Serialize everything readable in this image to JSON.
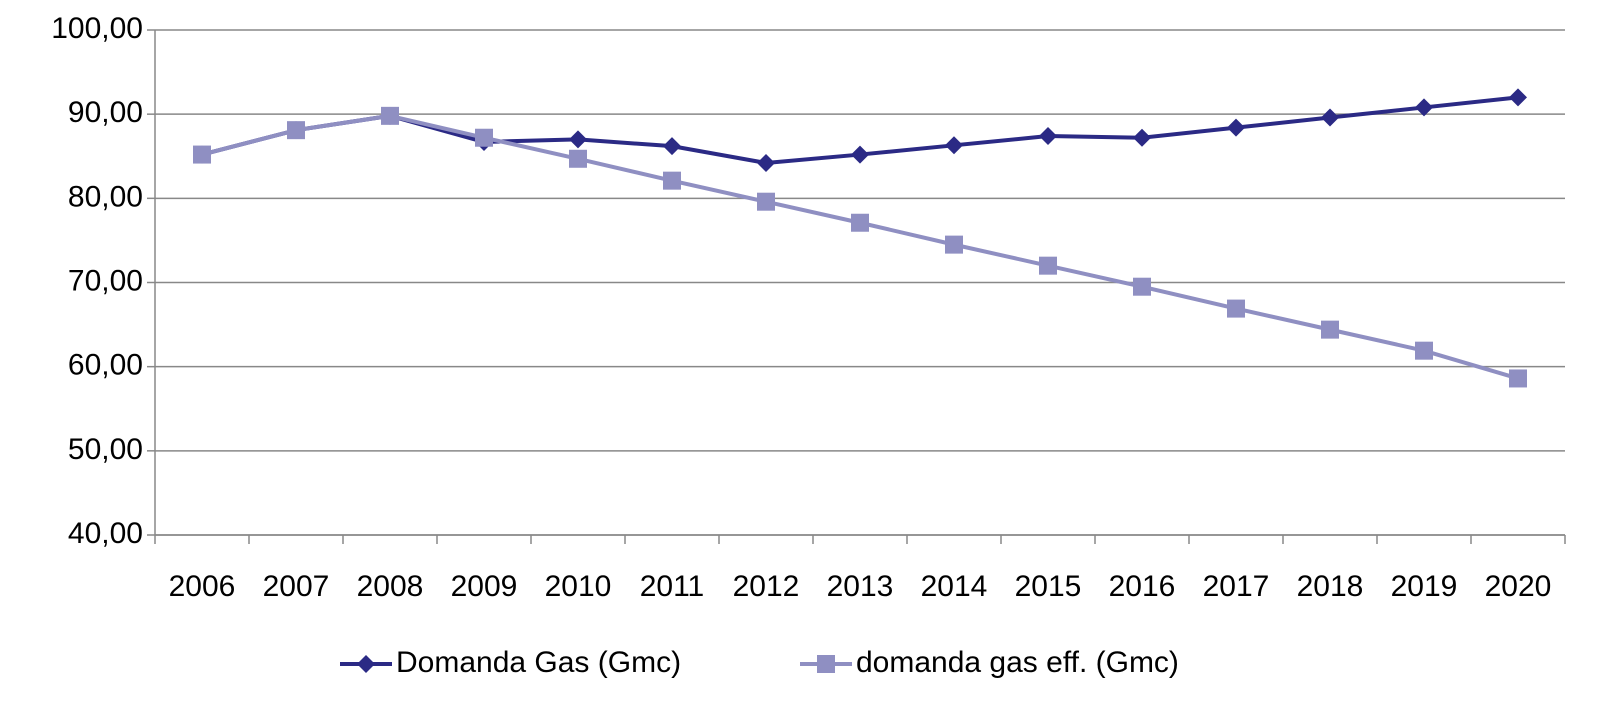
{
  "chart_data": {
    "type": "line",
    "categories": [
      "2006",
      "2007",
      "2008",
      "2009",
      "2010",
      "2011",
      "2012",
      "2013",
      "2014",
      "2015",
      "2016",
      "2017",
      "2018",
      "2019",
      "2020"
    ],
    "series": [
      {
        "name": "Domanda Gas (Gmc)",
        "color": "#2b2a85",
        "marker": "diamond",
        "values": [
          85.2,
          88.1,
          89.8,
          86.7,
          87.0,
          86.2,
          84.2,
          85.2,
          86.3,
          87.4,
          87.2,
          88.4,
          89.6,
          90.8,
          92.0
        ]
      },
      {
        "name": "domanda gas eff. (Gmc)",
        "color": "#8f8fc2",
        "marker": "square",
        "values": [
          85.2,
          88.1,
          89.8,
          87.2,
          84.7,
          82.1,
          79.6,
          77.1,
          74.5,
          72.0,
          69.5,
          66.9,
          64.4,
          61.9,
          58.6
        ]
      }
    ],
    "ylim": [
      40,
      100
    ],
    "yticks": [
      {
        "value": 40,
        "label": "40,00"
      },
      {
        "value": 50,
        "label": "50,00"
      },
      {
        "value": 60,
        "label": "60,00"
      },
      {
        "value": 70,
        "label": "70,00"
      },
      {
        "value": 80,
        "label": "80,00"
      },
      {
        "value": 90,
        "label": "90,00"
      },
      {
        "value": 100,
        "label": "100,00"
      }
    ],
    "grid": true,
    "legend": "bottom"
  }
}
